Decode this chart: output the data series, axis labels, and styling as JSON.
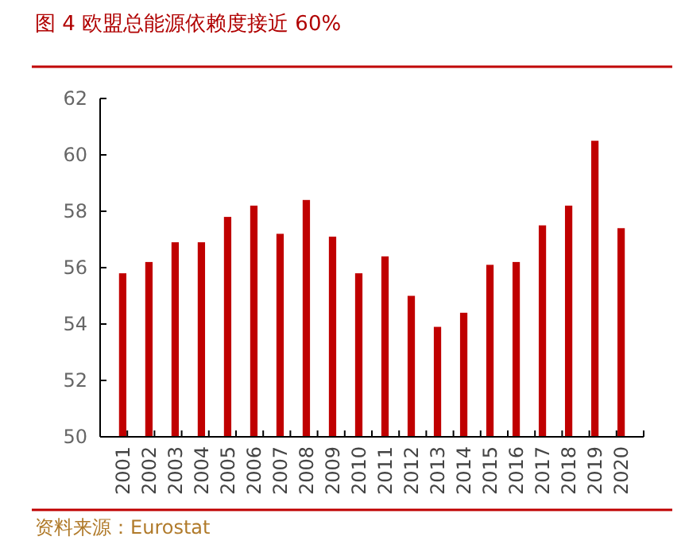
{
  "chart_data": {
    "type": "bar",
    "title": "图 4 欧盟总能源依赖度接近 60%",
    "categories": [
      "2001",
      "2002",
      "2003",
      "2004",
      "2005",
      "2006",
      "2007",
      "2008",
      "2009",
      "2010",
      "2011",
      "2012",
      "2013",
      "2014",
      "2015",
      "2016",
      "2017",
      "2018",
      "2019",
      "2020"
    ],
    "values": [
      55.8,
      56.2,
      56.9,
      56.9,
      57.8,
      58.2,
      57.2,
      58.4,
      57.1,
      55.8,
      56.4,
      55.0,
      53.9,
      54.4,
      56.1,
      56.2,
      57.5,
      58.2,
      60.5,
      57.4
    ],
    "color": "#c00000",
    "ylim": [
      50,
      62
    ],
    "yticks": [
      50,
      52,
      54,
      56,
      58,
      60,
      62
    ],
    "grid": false,
    "annotations": [
      "资料来源：Eurostat"
    ]
  }
}
